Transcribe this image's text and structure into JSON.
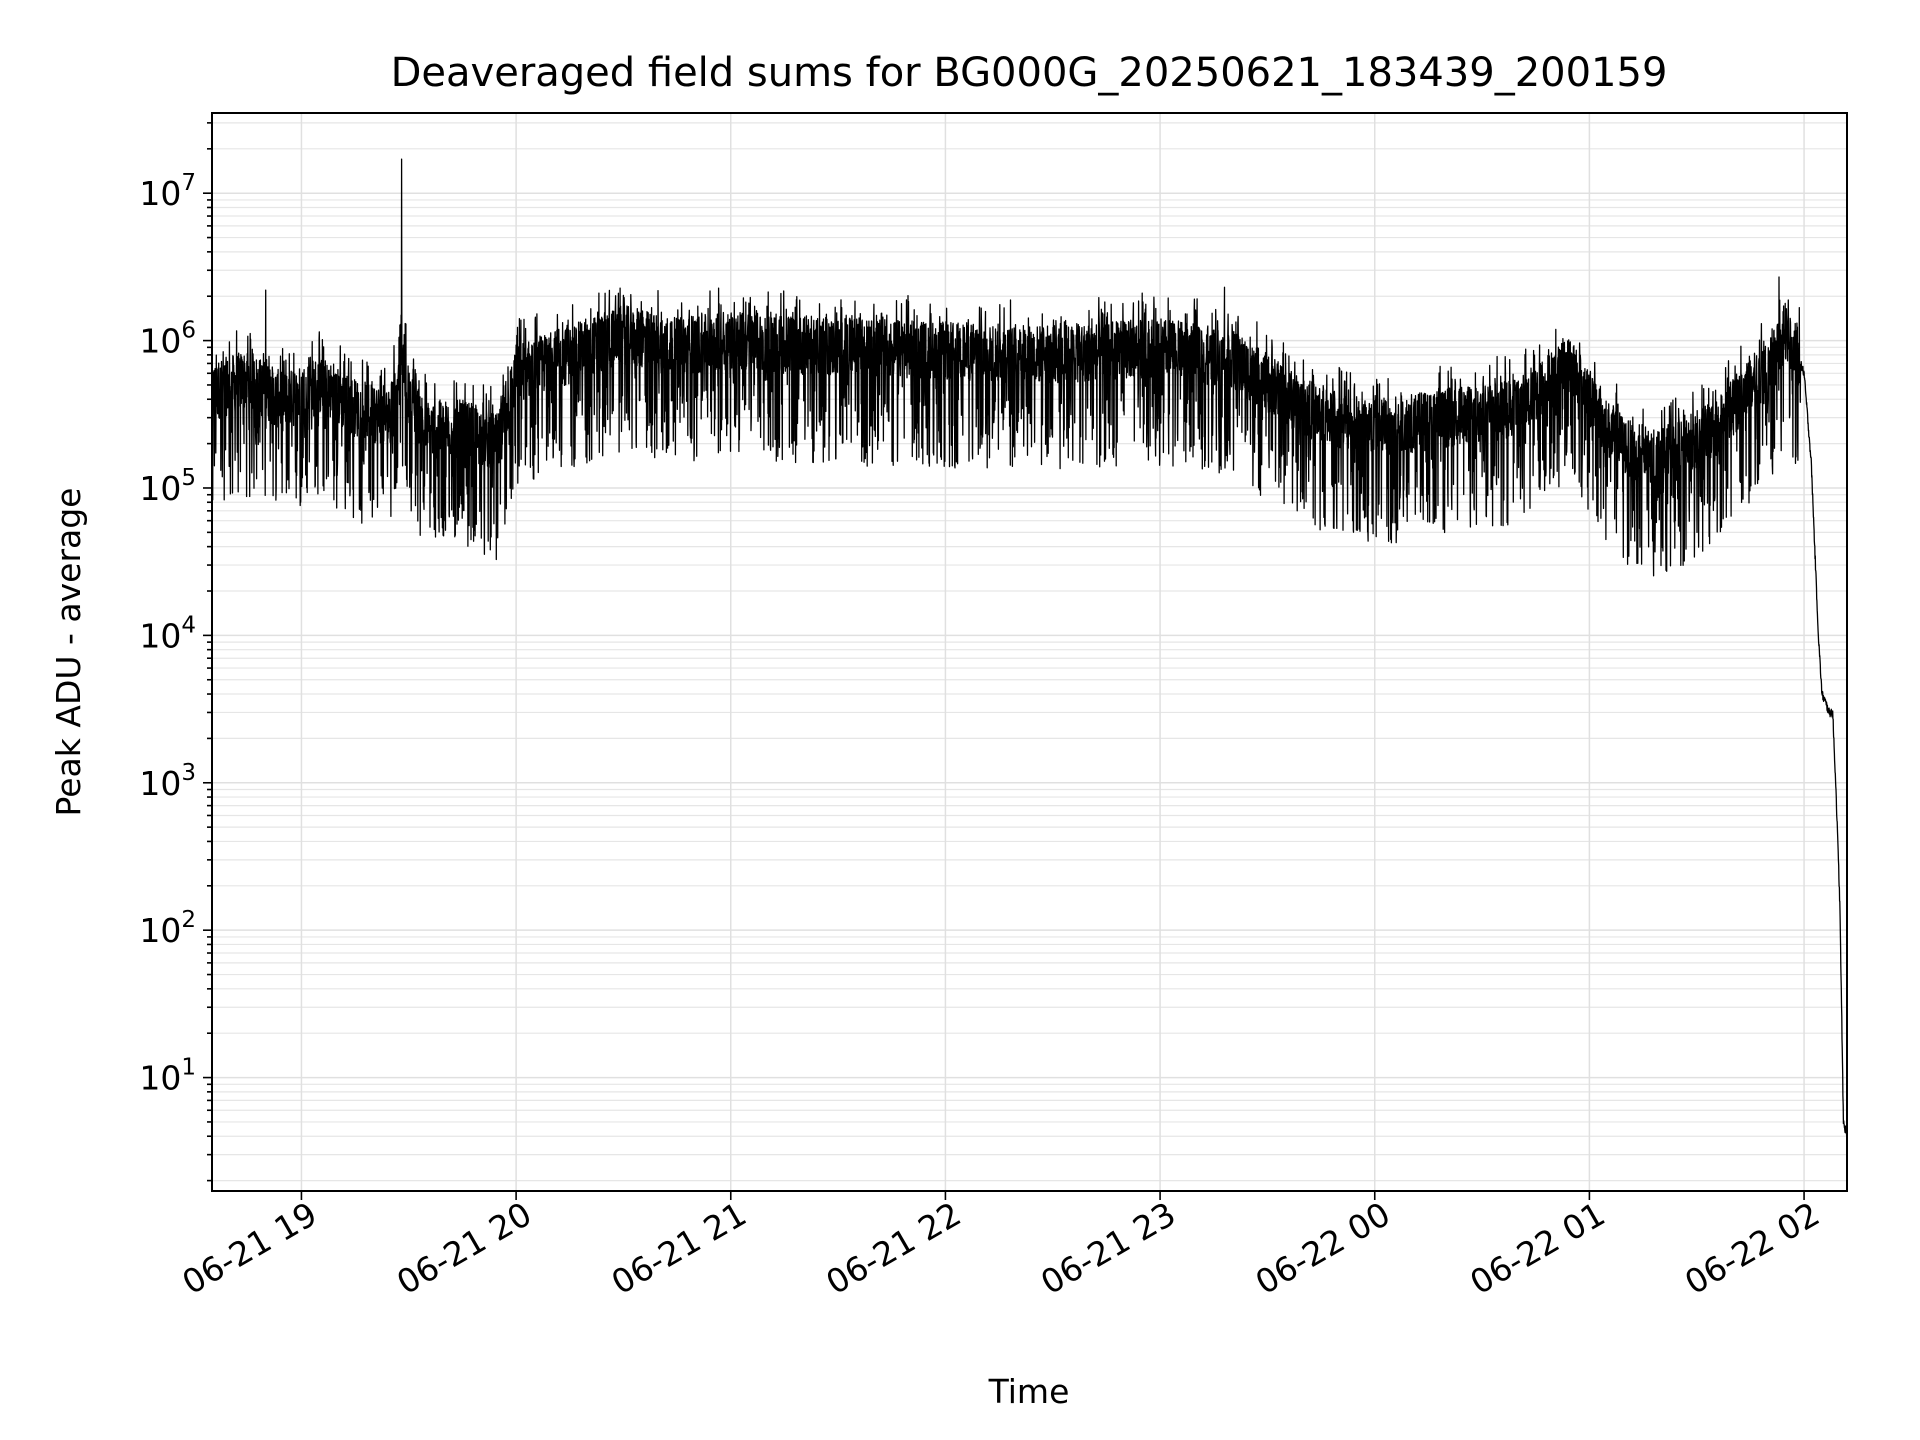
{
  "chart_data": {
    "type": "line",
    "title": "Deaveraged field sums for BG000G_20250621_183439_200159",
    "xlabel": "Time",
    "ylabel": "Peak ADU - average",
    "yscale": "log",
    "grid": true,
    "xlim": [
      "2025-06-21 18:35",
      "2025-06-22 02:12"
    ],
    "ylim": [
      1.7,
      35000000
    ],
    "xticks": [
      {
        "value": "2025-06-21 19:00",
        "label": "06-21 19"
      },
      {
        "value": "2025-06-21 20:00",
        "label": "06-21 20"
      },
      {
        "value": "2025-06-21 21:00",
        "label": "06-21 21"
      },
      {
        "value": "2025-06-21 22:00",
        "label": "06-21 22"
      },
      {
        "value": "2025-06-21 23:00",
        "label": "06-21 23"
      },
      {
        "value": "2025-06-22 00:00",
        "label": "06-22 00"
      },
      {
        "value": "2025-06-22 01:00",
        "label": "06-22 01"
      },
      {
        "value": "2025-06-22 02:00",
        "label": "06-22 02"
      }
    ],
    "yticks": [
      {
        "value": 10,
        "base": "10",
        "exp": "1"
      },
      {
        "value": 100,
        "base": "10",
        "exp": "2"
      },
      {
        "value": 1000,
        "base": "10",
        "exp": "3"
      },
      {
        "value": 10000,
        "base": "10",
        "exp": "4"
      },
      {
        "value": 100000,
        "base": "10",
        "exp": "5"
      },
      {
        "value": 1000000,
        "base": "10",
        "exp": "6"
      },
      {
        "value": 10000000,
        "base": "10",
        "exp": "7"
      }
    ],
    "series": [
      {
        "color": "#000000",
        "x": [
          "2025-06-21 18:35",
          "2025-06-21 18:45",
          "2025-06-21 18:55",
          "2025-06-21 19:05",
          "2025-06-21 19:15",
          "2025-06-21 19:25",
          "2025-06-21 19:28",
          "2025-06-21 19:30",
          "2025-06-21 19:35",
          "2025-06-21 19:45",
          "2025-06-21 19:55",
          "2025-06-21 20:00",
          "2025-06-21 20:15",
          "2025-06-21 20:30",
          "2025-06-21 20:45",
          "2025-06-21 21:00",
          "2025-06-21 21:30",
          "2025-06-21 22:00",
          "2025-06-21 22:30",
          "2025-06-21 23:00",
          "2025-06-21 23:20",
          "2025-06-21 23:40",
          "2025-06-22 00:00",
          "2025-06-22 00:20",
          "2025-06-22 00:40",
          "2025-06-22 00:55",
          "2025-06-22 01:05",
          "2025-06-22 01:15",
          "2025-06-22 01:25",
          "2025-06-22 01:35",
          "2025-06-22 01:45",
          "2025-06-22 01:50",
          "2025-06-22 01:55",
          "2025-06-22 01:58",
          "2025-06-22 02:00",
          "2025-06-22 02:02",
          "2025-06-22 02:04",
          "2025-06-22 02:05",
          "2025-06-22 02:06",
          "2025-06-22 02:07",
          "2025-06-22 02:08",
          "2025-06-22 02:09",
          "2025-06-22 02:10",
          "2025-06-22 02:11",
          "2025-06-22 02:12"
        ],
        "y": [
          450000,
          550000,
          380000,
          500000,
          350000,
          300000,
          1000000,
          400000,
          250000,
          250000,
          200000,
          600000,
          800000,
          1100000,
          900000,
          1000000,
          900000,
          850000,
          800000,
          900000,
          750000,
          350000,
          250000,
          300000,
          350000,
          700000,
          250000,
          150000,
          180000,
          250000,
          500000,
          600000,
          1200000,
          800000,
          600000,
          150000,
          10000,
          4000,
          3500,
          3000,
          3000,
          800,
          150,
          5,
          4
        ],
        "spikes": [
          {
            "x": "2025-06-21 19:28",
            "y": 17000000
          },
          {
            "x": "2025-06-21 18:50",
            "y": 2200000
          },
          {
            "x": "2025-06-21 22:55",
            "y": 2100000
          },
          {
            "x": "2025-06-21 23:18",
            "y": 2300000
          },
          {
            "x": "2025-06-22 01:53",
            "y": 2700000
          }
        ]
      }
    ]
  }
}
